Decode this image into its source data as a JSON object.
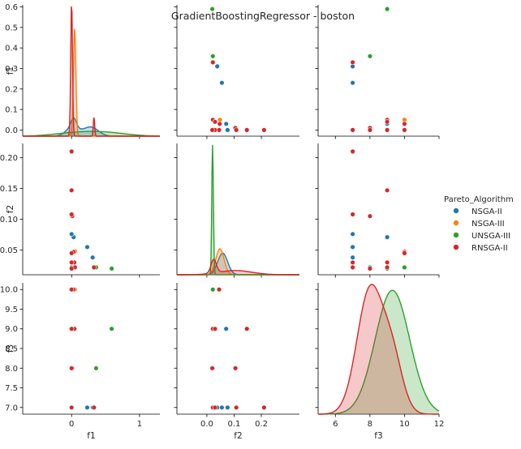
{
  "chart_data": {
    "type": "scatter",
    "title": "GradientBoostingRegressor - boston",
    "variables": [
      "f1",
      "f2",
      "f3"
    ],
    "legend": {
      "title": "Pareto_Algorithm",
      "placement": "right",
      "items": [
        {
          "name": "NSGA-II",
          "color": "#1f77b4"
        },
        {
          "name": "NSGA-III",
          "color": "#ff7f0e"
        },
        {
          "name": "UNSGA-III",
          "color": "#2ca02c"
        },
        {
          "name": "RNSGA-II",
          "color": "#d62728"
        }
      ]
    },
    "ticks": {
      "f1_x": [
        "0",
        "1"
      ],
      "f1_y": [
        "0.0",
        "0.1",
        "0.2",
        "0.3",
        "0.4",
        "0.5",
        "0.6"
      ],
      "f2_x": [
        "0.0",
        "0.1",
        "0.2"
      ],
      "f2_y": [
        "0.05",
        "0.10",
        "0.15",
        "0.20"
      ],
      "f3_x": [
        "6",
        "8",
        "10",
        "12"
      ],
      "f3_y": [
        "7.0",
        "7.5",
        "8.0",
        "8.5",
        "9.0",
        "9.5",
        "10.0"
      ]
    },
    "series": [
      {
        "name": "NSGA-II",
        "color": "#1f77b4",
        "points": [
          {
            "f1": 0.31,
            "f2": 0.038,
            "f3": 7
          },
          {
            "f1": 0.23,
            "f2": 0.055,
            "f3": 7
          },
          {
            "f1": 0.03,
            "f2": 0.071,
            "f3": 9
          },
          {
            "f1": 0.0,
            "f2": 0.076,
            "f3": 7
          }
        ]
      },
      {
        "name": "NSGA-III",
        "color": "#ff7f0e",
        "points": [
          {
            "f1": 0.05,
            "f2": 0.048,
            "f3": 10
          }
        ]
      },
      {
        "name": "UNSGA-III",
        "color": "#2ca02c",
        "points": [
          {
            "f1": 0.59,
            "f2": 0.02,
            "f3": 9
          },
          {
            "f1": 0.36,
            "f2": 0.022,
            "f3": 8
          },
          {
            "f1": 0.0,
            "f2": 0.022,
            "f3": 10
          }
        ]
      },
      {
        "name": "RNSGA-II",
        "color": "#d62728",
        "points": [
          {
            "f1": 0.33,
            "f2": 0.022,
            "f3": 7
          },
          {
            "f1": 0.05,
            "f2": 0.022,
            "f3": 9
          },
          {
            "f1": 0.04,
            "f2": 0.03,
            "f3": 9
          },
          {
            "f1": 0.03,
            "f2": 0.047,
            "f3": 10
          },
          {
            "f1": 0.01,
            "f2": 0.105,
            "f3": 8
          },
          {
            "f1": 0.0,
            "f2": 0.147,
            "f3": 9
          },
          {
            "f1": 0.0,
            "f2": 0.21,
            "f3": 7
          },
          {
            "f1": 0.0,
            "f2": 0.03,
            "f3": 7
          },
          {
            "f1": 0.0,
            "f2": 0.108,
            "f3": 7
          },
          {
            "f1": 0.0,
            "f2": 0.02,
            "f3": 8
          },
          {
            "f1": 0.0,
            "f2": 0.045,
            "f3": 10
          }
        ]
      }
    ],
    "kde": {
      "f1": [
        {
          "name": "NSGA-II",
          "color": "#1f77b4",
          "components": [
            [
              0.0,
              0.09,
              0.35
            ],
            [
              0.03,
              0.04,
              0.2
            ],
            [
              0.23,
              0.12,
              0.3
            ],
            [
              0.31,
              0.1,
              0.25
            ]
          ]
        },
        {
          "name": "NSGA-III",
          "color": "#ff7f0e",
          "components": [
            [
              0.045,
              0.018,
              1.0
            ]
          ]
        },
        {
          "name": "UNSGA-III",
          "color": "#2ca02c",
          "components": [
            [
              0.0,
              0.3,
              0.4
            ],
            [
              0.36,
              0.3,
              0.3
            ],
            [
              0.59,
              0.3,
              0.3
            ]
          ]
        },
        {
          "name": "RNSGA-II",
          "color": "#d62728",
          "components": [
            [
              0.0,
              0.013,
              0.9
            ],
            [
              0.33,
              0.01,
              0.1
            ]
          ]
        }
      ],
      "f2": [
        {
          "name": "NSGA-II",
          "color": "#1f77b4",
          "components": [
            [
              0.058,
              0.018,
              1.0
            ]
          ]
        },
        {
          "name": "NSGA-III",
          "color": "#ff7f0e",
          "components": [
            [
              0.048,
              0.015,
              1.0
            ]
          ]
        },
        {
          "name": "UNSGA-III",
          "color": "#2ca02c",
          "components": [
            [
              0.021,
              0.003,
              1.0
            ]
          ]
        },
        {
          "name": "RNSGA-II",
          "color": "#d62728",
          "components": [
            [
              0.025,
              0.01,
              0.35
            ],
            [
              0.105,
              0.06,
              0.65
            ]
          ]
        }
      ],
      "f3": [
        {
          "name": "UNSGA-III",
          "color": "#2ca02c",
          "components": [
            [
              9.3,
              1.0,
              1.0
            ]
          ]
        },
        {
          "name": "RNSGA-II",
          "color": "#d62728",
          "components": [
            [
              8.0,
              0.75,
              0.75
            ],
            [
              9.3,
              0.6,
              0.25
            ]
          ]
        }
      ]
    }
  }
}
